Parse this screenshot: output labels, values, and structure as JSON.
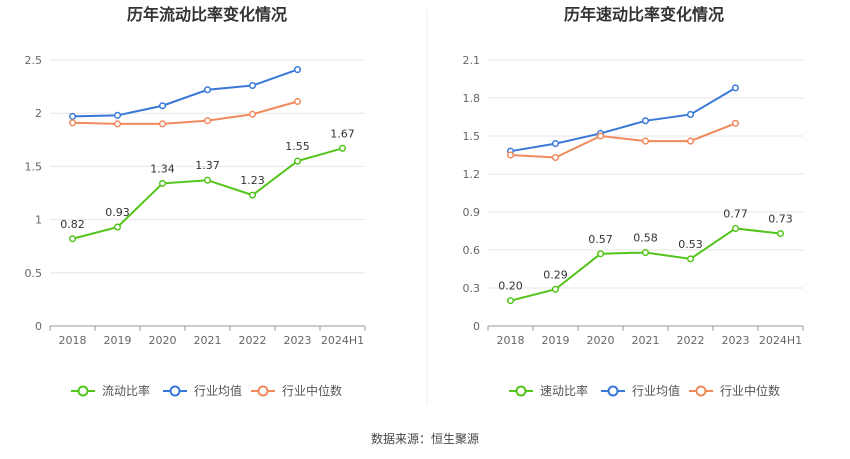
{
  "colors": {
    "primary": "#52c41a",
    "average": "#3a78d8",
    "median": "#f08a5d"
  },
  "source": "数据来源：恒生聚源",
  "chart_data": [
    {
      "type": "line",
      "title": "历年流动比率变化情况",
      "categories": [
        "2018",
        "2019",
        "2020",
        "2021",
        "2022",
        "2023",
        "2024H1"
      ],
      "ylim": [
        0,
        2.5
      ],
      "yticks": [
        "0",
        "0.5",
        "1",
        "1.5",
        "2",
        "2.5"
      ],
      "grid": true,
      "legend_position": "bottom",
      "series": [
        {
          "name": "流动比率",
          "values": [
            0.82,
            0.93,
            1.34,
            1.37,
            1.23,
            1.55,
            1.67
          ],
          "labels": [
            "0.82",
            "0.93",
            "1.34",
            "1.37",
            "1.23",
            "1.55",
            "1.67"
          ],
          "color_key": "primary"
        },
        {
          "name": "行业均值",
          "values": [
            1.97,
            1.98,
            2.07,
            2.22,
            2.26,
            2.41,
            null
          ],
          "color_key": "average"
        },
        {
          "name": "行业中位数",
          "values": [
            1.91,
            1.9,
            1.9,
            1.93,
            1.99,
            2.11,
            null
          ],
          "color_key": "median"
        }
      ]
    },
    {
      "type": "line",
      "title": "历年速动比率变化情况",
      "categories": [
        "2018",
        "2019",
        "2020",
        "2021",
        "2022",
        "2023",
        "2024H1"
      ],
      "ylim": [
        0,
        2.1
      ],
      "yticks": [
        "0",
        "0.3",
        "0.6",
        "0.9",
        "1.2",
        "1.5",
        "1.8",
        "2.1"
      ],
      "grid": true,
      "legend_position": "bottom",
      "series": [
        {
          "name": "速动比率",
          "values": [
            0.2,
            0.29,
            0.57,
            0.58,
            0.53,
            0.77,
            0.73
          ],
          "labels": [
            "0.20",
            "0.29",
            "0.57",
            "0.58",
            "0.53",
            "0.77",
            "0.73"
          ],
          "color_key": "primary"
        },
        {
          "name": "行业均值",
          "values": [
            1.38,
            1.44,
            1.52,
            1.62,
            1.67,
            1.88,
            null
          ],
          "color_key": "average"
        },
        {
          "name": "行业中位数",
          "values": [
            1.35,
            1.33,
            1.5,
            1.46,
            1.46,
            1.6,
            null
          ],
          "color_key": "median"
        }
      ]
    }
  ]
}
